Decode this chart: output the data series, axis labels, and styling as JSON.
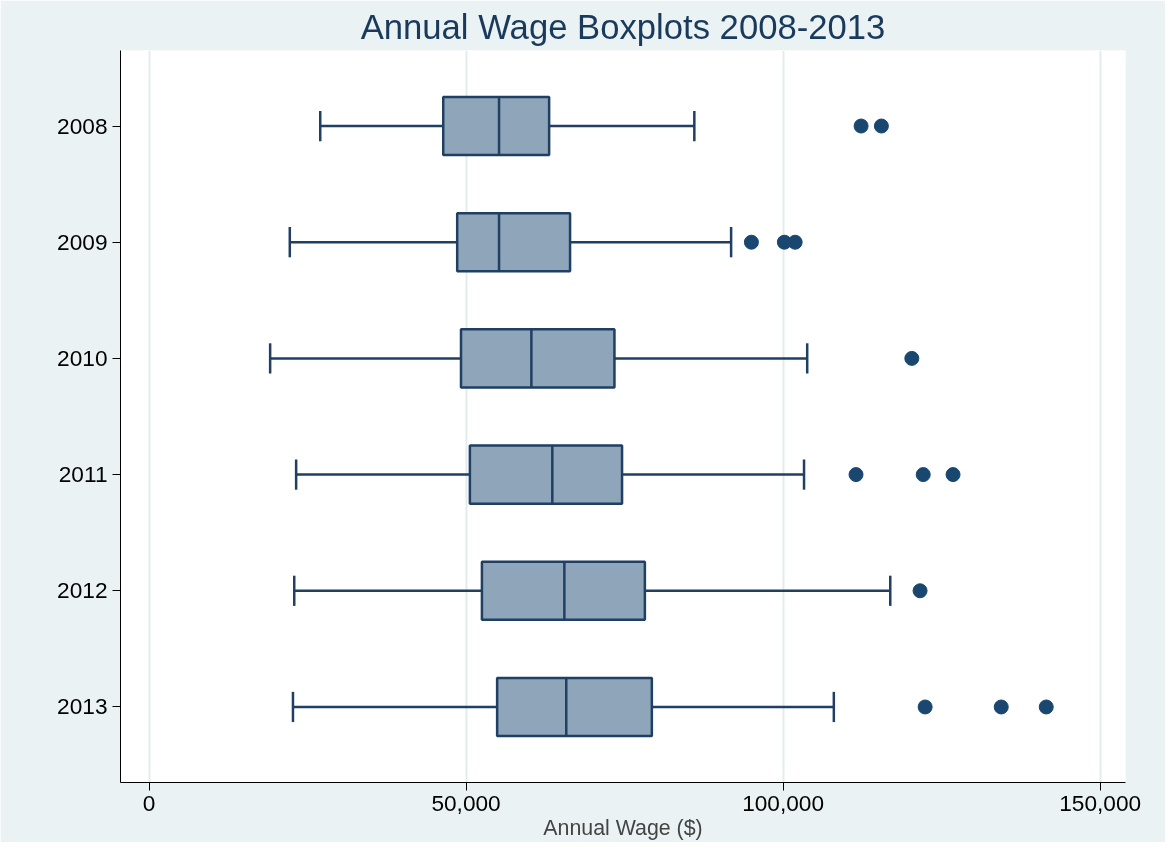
{
  "chart_data": {
    "type": "box",
    "title": "Annual Wage Boxplots 2008-2013",
    "xlabel": "Annual Wage ($)",
    "orientation": "horizontal",
    "categories": [
      "2008",
      "2009",
      "2010",
      "2011",
      "2012",
      "2013"
    ],
    "series": [
      {
        "color": "#8fa5ba",
        "boxes": [
          {
            "low": 27000,
            "q1": 46400,
            "median": 55200,
            "q3": 63100,
            "high": 86000,
            "outliers": [
              112300,
              115500
            ]
          },
          {
            "low": 22200,
            "q1": 48600,
            "median": 55200,
            "q3": 66400,
            "high": 91800,
            "outliers": [
              95000,
              100200,
              101900
            ]
          },
          {
            "low": 19100,
            "q1": 49200,
            "median": 60300,
            "q3": 73400,
            "high": 103800,
            "outliers": [
              120300
            ]
          },
          {
            "low": 23200,
            "q1": 50600,
            "median": 63600,
            "q3": 74600,
            "high": 103300,
            "outliers": [
              111500,
              122100,
              126800
            ]
          },
          {
            "low": 22900,
            "q1": 52500,
            "median": 65500,
            "q3": 78200,
            "high": 116900,
            "outliers": [
              121600
            ]
          },
          {
            "low": 22700,
            "q1": 54900,
            "median": 65800,
            "q3": 79300,
            "high": 108000,
            "outliers": [
              122400,
              134400,
              141500
            ]
          }
        ]
      }
    ],
    "xlim": [
      -4500,
      154000
    ],
    "xticks": [
      0,
      {
        "value": 50000,
        "label": "50,000"
      },
      {
        "value": 100000,
        "label": "100,000"
      },
      {
        "value": 150000,
        "label": "150,000"
      }
    ],
    "grid": "x",
    "marker": "circle"
  }
}
